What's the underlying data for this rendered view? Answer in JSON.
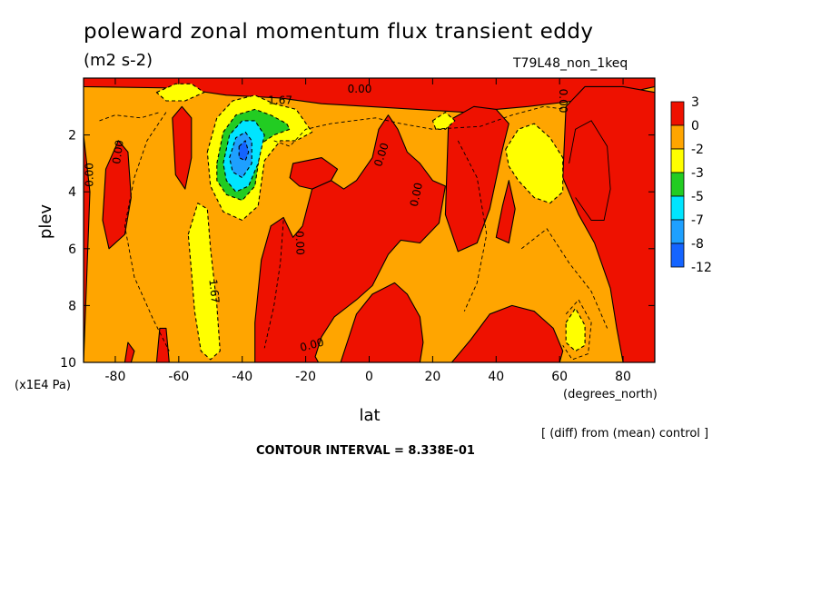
{
  "header": {
    "title": "poleward zonal momentum flux transient eddy",
    "units": "(m2 s-2)",
    "run_label": "T79L48_non_1keq"
  },
  "footer": {
    "contour_interval": "CONTOUR INTERVAL = 8.338E-01",
    "diff_note": "[ (diff) from (mean) control ]"
  },
  "colors": {
    "red": "#ee1100",
    "orange": "#ffa500",
    "yellow": "#ffff00",
    "green": "#22cc22",
    "cyan": "#00e5ff",
    "sky": "#1ea0ff",
    "blue": "#1464ff"
  },
  "chart_data": {
    "type": "contour",
    "xlabel": "lat",
    "xunits": "(degrees_north)",
    "ylabel": "plev",
    "yunits": "(x1E4 Pa)",
    "xlim": [
      -90,
      90
    ],
    "ylim": [
      10,
      0
    ],
    "xticks": [
      -80,
      -60,
      -40,
      -20,
      0,
      20,
      40,
      60,
      80
    ],
    "xtick_labels": [
      "-80",
      "-60",
      "-40",
      "-20",
      "0",
      "20",
      "40",
      "60",
      "80"
    ],
    "yticks": [
      2,
      4,
      6,
      8,
      10
    ],
    "ytick_labels": [
      "2",
      "4",
      "6",
      "8",
      "10"
    ],
    "colorbar": {
      "labels": [
        "3",
        "0",
        "-2",
        "-3",
        "-5",
        "-7",
        "-8",
        "-12"
      ],
      "colors": [
        "#ee1100",
        "#ffa500",
        "#ffff00",
        "#22cc22",
        "#00e5ff",
        "#1ea0ff",
        "#1464ff"
      ]
    },
    "background_level": "orange",
    "regions": [
      {
        "level": "red",
        "points": [
          [
            -90,
            10
          ],
          [
            -88,
            4
          ],
          [
            -90,
            2
          ]
        ]
      },
      {
        "level": "red",
        "points": [
          [
            -90,
            0.3
          ],
          [
            -60,
            0.35
          ],
          [
            -45,
            0.6
          ],
          [
            -28,
            0.7
          ],
          [
            -15,
            0.9
          ],
          [
            0,
            1.0
          ],
          [
            15,
            1.1
          ],
          [
            30,
            1.2
          ],
          [
            50,
            1.0
          ],
          [
            65,
            0.8
          ],
          [
            80,
            0.55
          ],
          [
            90,
            0.3
          ],
          [
            90,
            0
          ],
          [
            -90,
            0
          ]
        ]
      },
      {
        "level": "red",
        "points": [
          [
            -83,
            3.2
          ],
          [
            -79,
            2.2
          ],
          [
            -76,
            2.6
          ],
          [
            -75,
            4.2
          ],
          [
            -77,
            5.5
          ],
          [
            -82,
            6.0
          ],
          [
            -84,
            5.0
          ]
        ]
      },
      {
        "level": "red",
        "points": [
          [
            -62,
            1.4
          ],
          [
            -59,
            1.0
          ],
          [
            -56,
            1.4
          ],
          [
            -56,
            2.8
          ],
          [
            -58,
            3.9
          ],
          [
            -61,
            3.4
          ]
        ]
      },
      {
        "level": "red",
        "points": [
          [
            -36,
            10
          ],
          [
            -36,
            8.6
          ],
          [
            -34,
            6.4
          ],
          [
            -31,
            5.2
          ],
          [
            -27,
            4.9
          ],
          [
            -24,
            5.6
          ],
          [
            -21,
            5.2
          ],
          [
            -18,
            3.9
          ],
          [
            -12,
            3.6
          ],
          [
            -8,
            3.9
          ],
          [
            -4,
            3.6
          ],
          [
            1,
            2.8
          ],
          [
            3,
            1.8
          ],
          [
            6,
            1.3
          ],
          [
            9,
            1.8
          ],
          [
            12,
            2.6
          ],
          [
            16,
            3.0
          ],
          [
            20,
            3.6
          ],
          [
            24,
            3.8
          ],
          [
            22,
            5.1
          ],
          [
            16,
            5.8
          ],
          [
            10,
            5.7
          ],
          [
            6,
            6.2
          ],
          [
            1,
            7.3
          ],
          [
            -4,
            7.8
          ],
          [
            -11,
            8.4
          ],
          [
            -15,
            9.1
          ],
          [
            -17,
            9.8
          ],
          [
            -16,
            10
          ]
        ]
      },
      {
        "level": "red",
        "points": [
          [
            -24,
            3.0
          ],
          [
            -15,
            2.8
          ],
          [
            -10,
            3.2
          ],
          [
            -12,
            3.6
          ],
          [
            -18,
            3.9
          ],
          [
            -22,
            3.8
          ],
          [
            -25,
            3.5
          ]
        ]
      },
      {
        "level": "red",
        "points": [
          [
            -9,
            10
          ],
          [
            -4,
            8.3
          ],
          [
            1,
            7.6
          ],
          [
            8,
            7.2
          ],
          [
            12,
            7.6
          ],
          [
            16,
            8.4
          ],
          [
            17,
            9.3
          ],
          [
            16,
            10
          ]
        ]
      },
      {
        "level": "red",
        "points": [
          [
            26,
            10
          ],
          [
            32,
            9.2
          ],
          [
            38,
            8.3
          ],
          [
            45,
            8.0
          ],
          [
            52,
            8.2
          ],
          [
            58,
            8.8
          ],
          [
            61,
            9.6
          ],
          [
            60,
            10
          ]
        ]
      },
      {
        "level": "red",
        "points": [
          [
            25,
            1.5
          ],
          [
            33,
            1.0
          ],
          [
            40,
            1.1
          ],
          [
            44,
            1.6
          ],
          [
            42,
            2.5
          ],
          [
            38,
            4.6
          ],
          [
            34,
            5.8
          ],
          [
            28,
            6.1
          ],
          [
            24,
            4.8
          ]
        ]
      },
      {
        "level": "red",
        "points": [
          [
            40,
            5.6
          ],
          [
            42,
            4.5
          ],
          [
            44,
            3.6
          ],
          [
            46,
            4.6
          ],
          [
            44,
            5.8
          ]
        ]
      },
      {
        "level": "red",
        "points": [
          [
            61,
            3.5
          ],
          [
            62,
            1.0
          ],
          [
            68,
            0.3
          ],
          [
            80,
            0.3
          ],
          [
            90,
            0.5
          ],
          [
            90,
            10
          ],
          [
            80,
            10
          ],
          [
            78,
            8.8
          ],
          [
            76,
            7.4
          ],
          [
            71,
            5.8
          ],
          [
            66,
            4.8
          ]
        ]
      },
      {
        "level": "red",
        "points": [
          [
            -77,
            10
          ],
          [
            -76,
            9.3
          ],
          [
            -74,
            9.6
          ],
          [
            -75,
            10
          ]
        ]
      },
      {
        "level": "red",
        "points": [
          [
            -67,
            10
          ],
          [
            -66,
            8.8
          ],
          [
            -64,
            8.8
          ],
          [
            -63,
            10
          ]
        ]
      },
      {
        "level": "yellow",
        "points": [
          [
            -67,
            0.5
          ],
          [
            -61,
            0.2
          ],
          [
            -56,
            0.2
          ],
          [
            -52,
            0.5
          ],
          [
            -58,
            0.8
          ],
          [
            -64,
            0.8
          ]
        ]
      },
      {
        "level": "yellow",
        "points": [
          [
            -57,
            5.5
          ],
          [
            -54,
            4.4
          ],
          [
            -51,
            4.6
          ],
          [
            -50,
            6.0
          ],
          [
            -48,
            8.0
          ],
          [
            -47,
            9.6
          ],
          [
            -50,
            9.9
          ],
          [
            -53,
            9.6
          ],
          [
            -55,
            8.2
          ],
          [
            -56,
            6.8
          ]
        ]
      },
      {
        "level": "yellow",
        "points": [
          [
            -51,
            2.6
          ],
          [
            -48,
            1.4
          ],
          [
            -43,
            0.8
          ],
          [
            -36,
            0.6
          ],
          [
            -30,
            0.9
          ],
          [
            -23,
            1.1
          ],
          [
            -18,
            1.9
          ],
          [
            -23,
            2.2
          ],
          [
            -28,
            2.2
          ],
          [
            -33,
            2.9
          ],
          [
            -35,
            4.5
          ],
          [
            -40,
            5.0
          ],
          [
            -46,
            4.7
          ],
          [
            -50,
            3.8
          ]
        ]
      },
      {
        "level": "green",
        "points": [
          [
            -48,
            3.0
          ],
          [
            -46,
            1.9
          ],
          [
            -42,
            1.3
          ],
          [
            -36,
            1.1
          ],
          [
            -31,
            1.3
          ],
          [
            -26,
            1.6
          ],
          [
            -25,
            1.8
          ],
          [
            -30,
            2.0
          ],
          [
            -34,
            2.3
          ],
          [
            -36,
            3.8
          ],
          [
            -40,
            4.3
          ],
          [
            -45,
            4.1
          ],
          [
            -48,
            3.6
          ]
        ]
      },
      {
        "level": "cyan",
        "points": [
          [
            -46,
            3.0
          ],
          [
            -44,
            2.0
          ],
          [
            -40,
            1.5
          ],
          [
            -36,
            1.5
          ],
          [
            -33,
            2.0
          ],
          [
            -35,
            3.0
          ],
          [
            -38,
            3.8
          ],
          [
            -42,
            4.0
          ],
          [
            -45,
            3.6
          ]
        ]
      },
      {
        "level": "sky",
        "points": [
          [
            -44,
            2.8
          ],
          [
            -42,
            2.1
          ],
          [
            -39,
            1.9
          ],
          [
            -37,
            2.2
          ],
          [
            -37,
            3.0
          ],
          [
            -40,
            3.5
          ],
          [
            -43,
            3.3
          ]
        ]
      },
      {
        "level": "blue",
        "points": [
          [
            -41,
            2.4
          ],
          [
            -39,
            2.2
          ],
          [
            -38,
            2.6
          ],
          [
            -39,
            2.9
          ],
          [
            -41,
            2.8
          ]
        ]
      },
      {
        "level": "yellow",
        "points": [
          [
            43,
            2.5
          ],
          [
            47,
            1.8
          ],
          [
            52,
            1.6
          ],
          [
            57,
            2.1
          ],
          [
            61,
            2.8
          ],
          [
            61,
            4.0
          ],
          [
            57,
            4.4
          ],
          [
            52,
            4.2
          ],
          [
            47,
            3.6
          ],
          [
            44,
            3.1
          ]
        ]
      },
      {
        "level": "yellow",
        "points": [
          [
            62,
            8.6
          ],
          [
            65,
            8.1
          ],
          [
            68,
            8.7
          ],
          [
            68,
            9.4
          ],
          [
            65,
            9.6
          ],
          [
            62,
            9.3
          ]
        ]
      },
      {
        "level": "yellow",
        "points": [
          [
            20,
            1.5
          ],
          [
            24,
            1.2
          ],
          [
            27,
            1.5
          ],
          [
            24,
            1.8
          ],
          [
            21,
            1.8
          ]
        ]
      }
    ],
    "contour_lines": [
      {
        "style": "solid",
        "points": [
          [
            63,
            3.0
          ],
          [
            65,
            1.8
          ],
          [
            70,
            1.5
          ],
          [
            75,
            2.4
          ],
          [
            76,
            3.9
          ],
          [
            74,
            5.0
          ],
          [
            70,
            5.0
          ],
          [
            65,
            4.2
          ]
        ]
      },
      {
        "style": "dashed",
        "points": [
          [
            -64,
            1.2
          ],
          [
            -70,
            2.2
          ],
          [
            -74,
            3.5
          ],
          [
            -77,
            5.2
          ],
          [
            -74,
            7.0
          ],
          [
            -68,
            8.5
          ],
          [
            -63,
            9.6
          ]
        ]
      },
      {
        "style": "dashed",
        "points": [
          [
            -30,
            2.2
          ],
          [
            -25,
            2.4
          ],
          [
            -20,
            1.8
          ],
          [
            -12,
            1.6
          ],
          [
            -5,
            1.5
          ],
          [
            2,
            1.4
          ],
          [
            10,
            1.6
          ],
          [
            20,
            1.8
          ],
          [
            35,
            1.7
          ],
          [
            45,
            1.3
          ],
          [
            55,
            1.0
          ],
          [
            62,
            1.1
          ]
        ]
      },
      {
        "style": "dashed",
        "points": [
          [
            -27,
            5.0
          ],
          [
            -28,
            6.5
          ],
          [
            -30,
            8.0
          ],
          [
            -33,
            9.5
          ]
        ]
      },
      {
        "style": "dashed",
        "points": [
          [
            28,
            2.2
          ],
          [
            34,
            3.5
          ],
          [
            37,
            5.5
          ],
          [
            34,
            7.2
          ],
          [
            30,
            8.2
          ]
        ]
      },
      {
        "style": "dashed",
        "points": [
          [
            48,
            6.0
          ],
          [
            56,
            5.3
          ],
          [
            63,
            6.5
          ],
          [
            70,
            7.5
          ],
          [
            75,
            8.8
          ]
        ]
      },
      {
        "style": "dashed",
        "points": [
          [
            -85,
            1.5
          ],
          [
            -80,
            1.3
          ],
          [
            -72,
            1.4
          ],
          [
            -66,
            1.2
          ]
        ]
      },
      {
        "style": "dashed",
        "points": [
          [
            62,
            8.3
          ],
          [
            66,
            7.8
          ],
          [
            70,
            8.6
          ],
          [
            69,
            9.7
          ],
          [
            64,
            9.9
          ],
          [
            61,
            9.4
          ]
        ]
      }
    ],
    "annotations": [
      {
        "text": "0.00",
        "x": -79,
        "y": 2.6,
        "angle": -82
      },
      {
        "text": "0.00",
        "x": -88,
        "y": 3.4,
        "angle": -90
      },
      {
        "text": "1.67",
        "x": -28,
        "y": 0.8,
        "angle": 0
      },
      {
        "text": "0.00",
        "x": -3,
        "y": 0.4,
        "angle": 0
      },
      {
        "text": "0.00",
        "x": 61,
        "y": 0.8,
        "angle": 90
      },
      {
        "text": "0.00",
        "x": 4,
        "y": 2.7,
        "angle": -72
      },
      {
        "text": "0.00",
        "x": 15,
        "y": 4.1,
        "angle": -78
      },
      {
        "text": "0.00",
        "x": -22,
        "y": 5.8,
        "angle": 88
      },
      {
        "text": "1.67",
        "x": -49,
        "y": 7.5,
        "angle": 84
      },
      {
        "text": "0.00",
        "x": -18,
        "y": 9.4,
        "angle": -15
      }
    ],
    "grid": false,
    "legend": "right"
  }
}
